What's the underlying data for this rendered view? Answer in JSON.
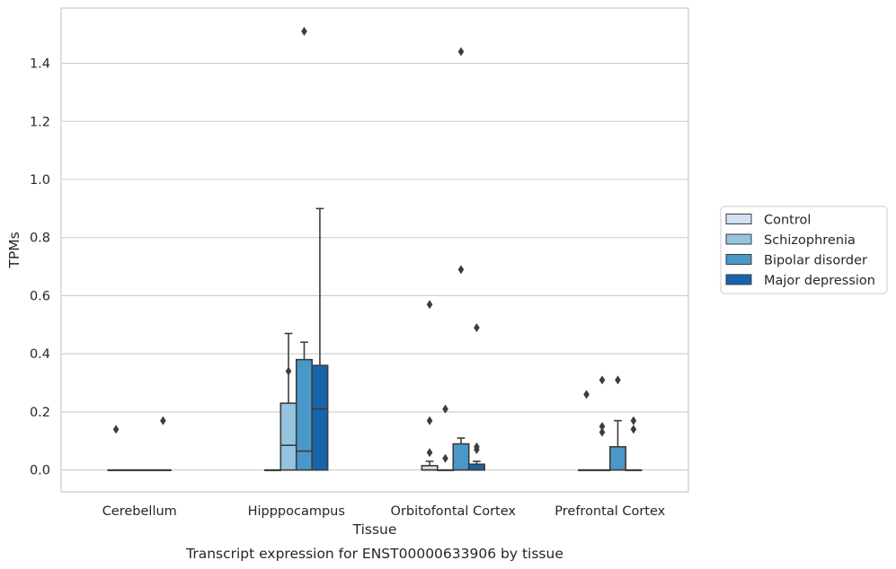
{
  "chart_data": {
    "type": "box",
    "title": "",
    "caption": "Transcript expression for ENST00000633906 by tissue",
    "xlabel": "Tissue",
    "ylabel": "TPMs",
    "ylim": [
      -0.075,
      1.59
    ],
    "yticks": [
      0.0,
      0.2,
      0.4,
      0.6,
      0.8,
      1.0,
      1.2,
      1.4
    ],
    "ytick_labels": [
      "0.0",
      "0.2",
      "0.4",
      "0.6",
      "0.8",
      "1.0",
      "1.2",
      "1.4"
    ],
    "grid": "horizontal",
    "legend_position": "right",
    "categories": [
      "Cerebellum",
      "Hipppocampus",
      "Orbitofontal Cortex",
      "Prefrontal Cortex"
    ],
    "series": [
      {
        "name": "Control",
        "color": "#d0e1f2",
        "boxes": [
          {
            "category": "Cerebellum",
            "q1": 0,
            "median": 0,
            "q3": 0,
            "whisker_low": 0,
            "whisker_high": 0,
            "outliers": [
              0.14
            ]
          },
          {
            "category": "Hipppocampus",
            "q1": 0,
            "median": 0,
            "q3": 0,
            "whisker_low": 0,
            "whisker_high": 0,
            "outliers": []
          },
          {
            "category": "Orbitofontal Cortex",
            "q1": 0,
            "median": 0,
            "q3": 0.015,
            "whisker_low": 0,
            "whisker_high": 0.03,
            "outliers": [
              0.06,
              0.17,
              0.57
            ]
          },
          {
            "category": "Prefrontal Cortex",
            "q1": 0,
            "median": 0,
            "q3": 0,
            "whisker_low": 0,
            "whisker_high": 0,
            "outliers": [
              0.26
            ]
          }
        ]
      },
      {
        "name": "Schizophrenia",
        "color": "#94c4df",
        "boxes": [
          {
            "category": "Cerebellum",
            "q1": 0,
            "median": 0,
            "q3": 0,
            "whisker_low": 0,
            "whisker_high": 0,
            "outliers": []
          },
          {
            "category": "Hipppocampus",
            "q1": 0,
            "median": 0.085,
            "q3": 0.23,
            "whisker_low": 0,
            "whisker_high": 0.47,
            "outliers": [
              0.34
            ]
          },
          {
            "category": "Orbitofontal Cortex",
            "q1": 0,
            "median": 0,
            "q3": 0,
            "whisker_low": 0,
            "whisker_high": 0,
            "outliers": [
              0.04,
              0.21
            ]
          },
          {
            "category": "Prefrontal Cortex",
            "q1": 0,
            "median": 0,
            "q3": 0,
            "whisker_low": 0,
            "whisker_high": 0,
            "outliers": [
              0.13,
              0.15,
              0.31
            ]
          }
        ]
      },
      {
        "name": "Bipolar disorder",
        "color": "#4a98c9",
        "boxes": [
          {
            "category": "Cerebellum",
            "q1": 0,
            "median": 0,
            "q3": 0,
            "whisker_low": 0,
            "whisker_high": 0,
            "outliers": []
          },
          {
            "category": "Hipppocampus",
            "q1": 0,
            "median": 0.065,
            "q3": 0.38,
            "whisker_low": 0,
            "whisker_high": 0.44,
            "outliers": [
              1.51
            ]
          },
          {
            "category": "Orbitofontal Cortex",
            "q1": 0,
            "median": 0,
            "q3": 0.09,
            "whisker_low": 0,
            "whisker_high": 0.11,
            "outliers": [
              0.69,
              1.44
            ]
          },
          {
            "category": "Prefrontal Cortex",
            "q1": 0,
            "median": 0,
            "q3": 0.08,
            "whisker_low": 0,
            "whisker_high": 0.17,
            "outliers": [
              0.31
            ]
          }
        ]
      },
      {
        "name": "Major depression",
        "color": "#1764ab",
        "boxes": [
          {
            "category": "Cerebellum",
            "q1": 0,
            "median": 0,
            "q3": 0,
            "whisker_low": 0,
            "whisker_high": 0,
            "outliers": [
              0.17
            ]
          },
          {
            "category": "Hipppocampus",
            "q1": 0,
            "median": 0.21,
            "q3": 0.36,
            "whisker_low": 0,
            "whisker_high": 0.9,
            "outliers": []
          },
          {
            "category": "Orbitofontal Cortex",
            "q1": 0,
            "median": 0,
            "q3": 0.02,
            "whisker_low": 0,
            "whisker_high": 0.03,
            "outliers": [
              0.07,
              0.08,
              0.49
            ]
          },
          {
            "category": "Prefrontal Cortex",
            "q1": 0,
            "median": 0,
            "q3": 0,
            "whisker_low": 0,
            "whisker_high": 0,
            "outliers": [
              0.14,
              0.17
            ]
          }
        ]
      }
    ]
  }
}
